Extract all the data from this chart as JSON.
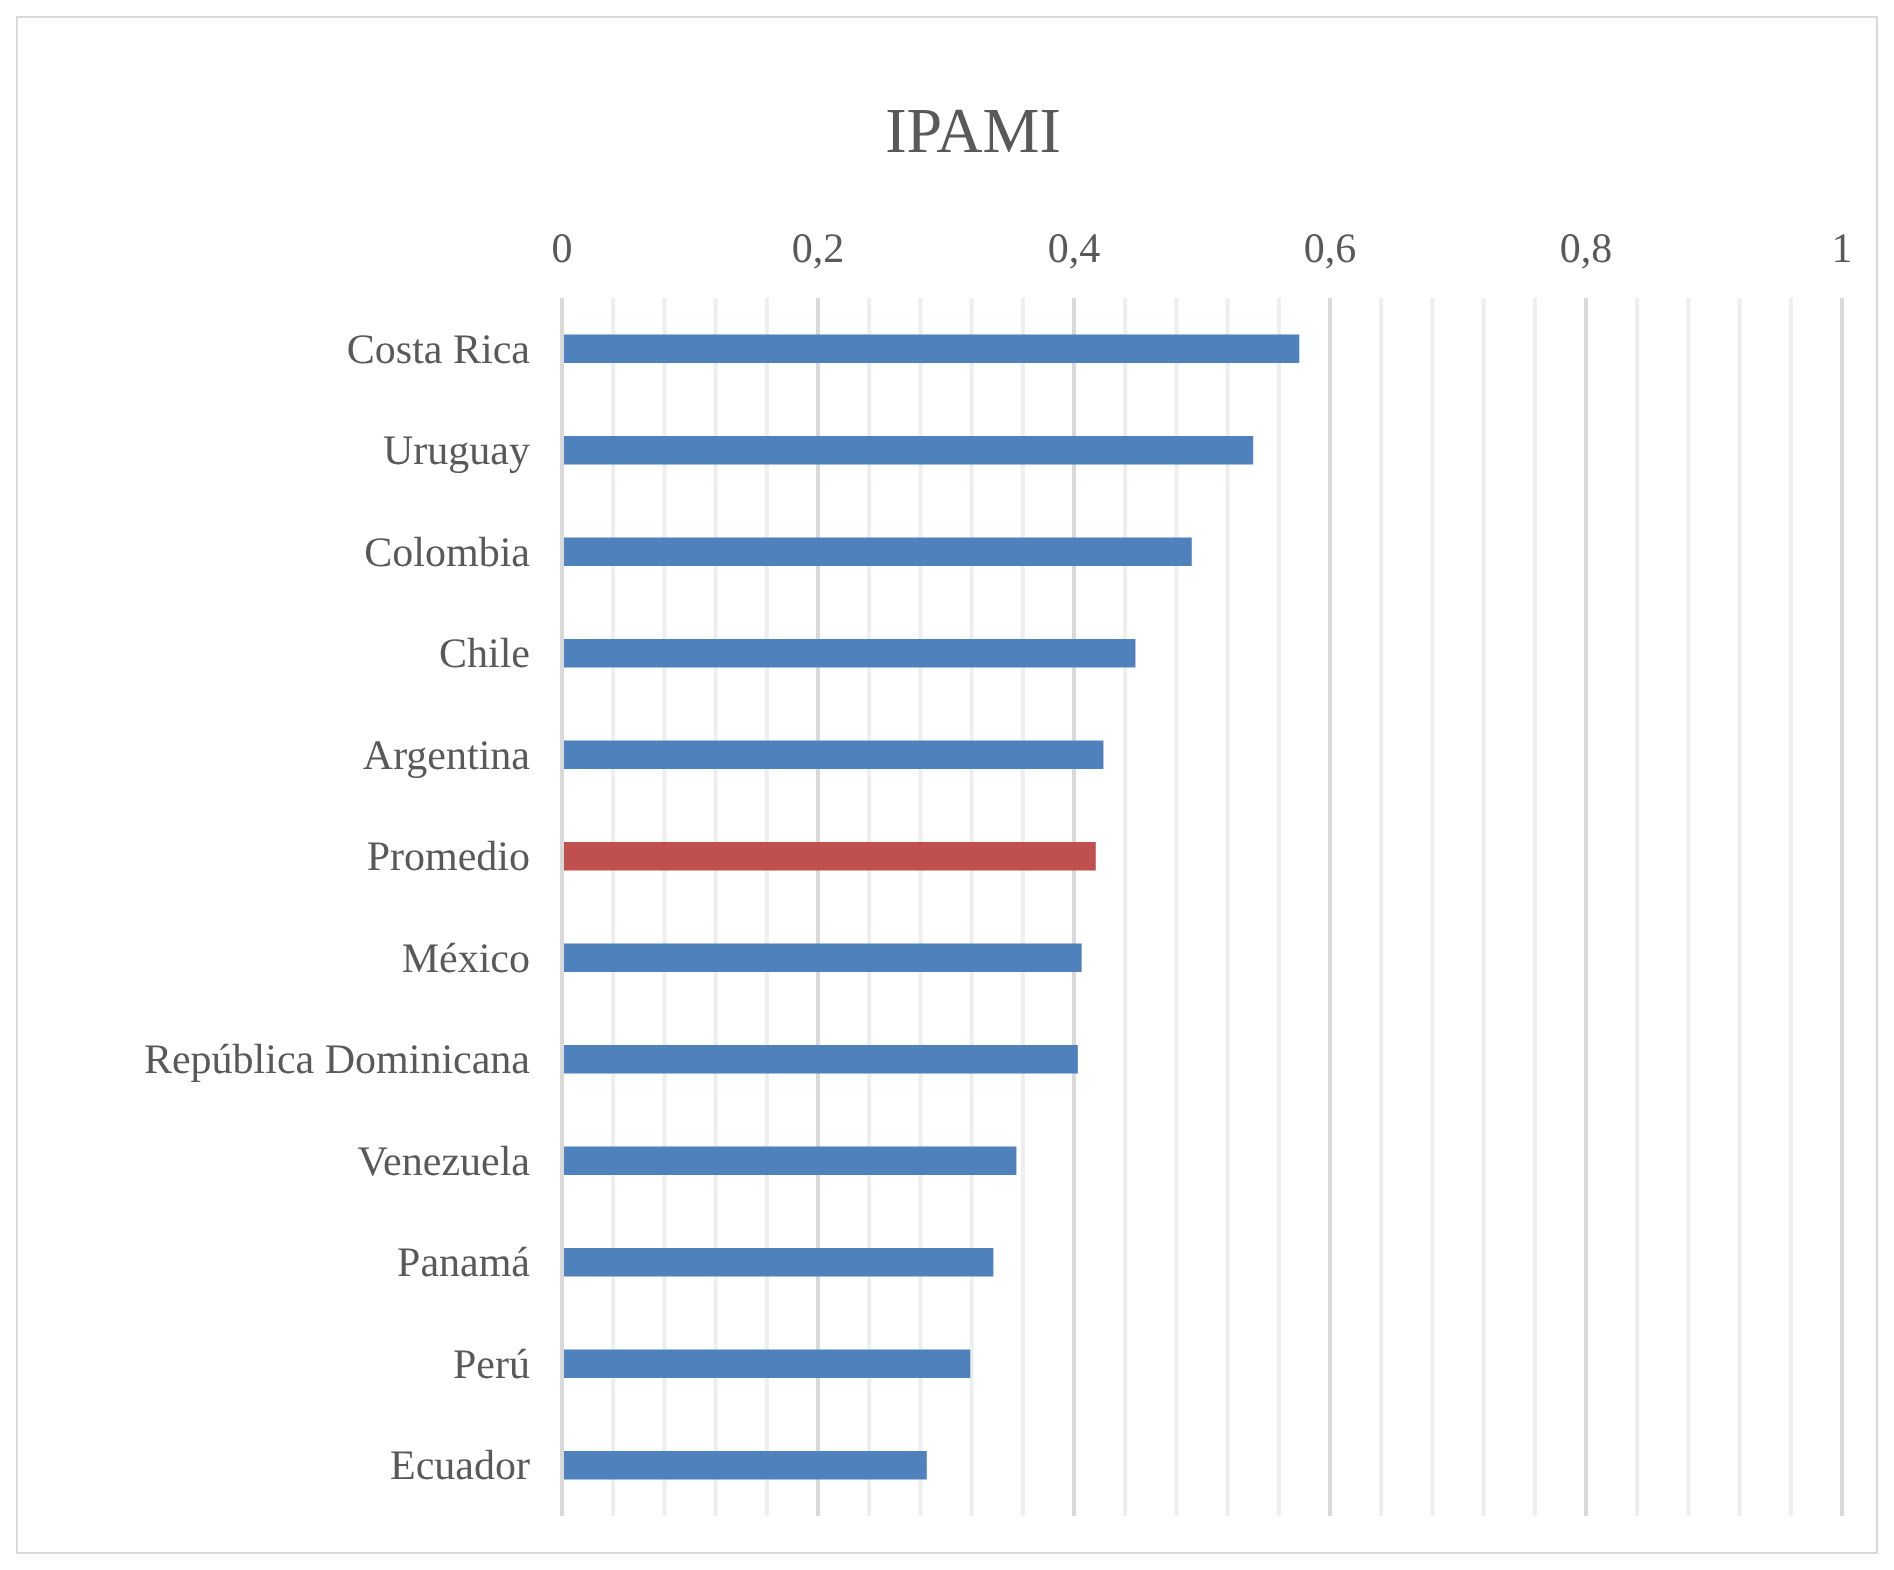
{
  "chart_data": {
    "type": "bar",
    "orientation": "horizontal",
    "title": "IPAMI",
    "categories": [
      "Costa Rica",
      "Uruguay",
      "Colombia",
      "Chile",
      "Argentina",
      "Promedio",
      "México",
      "República Dominicana",
      "Venezuela",
      "Panamá",
      "Perú",
      "Ecuador"
    ],
    "values": [
      0.576,
      0.54,
      0.492,
      0.448,
      0.423,
      0.417,
      0.406,
      0.403,
      0.355,
      0.337,
      0.319,
      0.285
    ],
    "colors": [
      "#4f81bd",
      "#4f81bd",
      "#4f81bd",
      "#4f81bd",
      "#4f81bd",
      "#c0504d",
      "#4f81bd",
      "#4f81bd",
      "#4f81bd",
      "#4f81bd",
      "#4f81bd",
      "#4f81bd"
    ],
    "xlim": [
      0,
      1
    ],
    "xticks": [
      0,
      {
        "value": 0.04,
        "label": null
      },
      {
        "value": 0.08,
        "label": null
      },
      {
        "value": 0.12,
        "label": null
      },
      {
        "value": 0.16,
        "label": null
      },
      {
        "value": 0.2,
        "label": "0,2"
      },
      {
        "value": 0.24,
        "label": null
      },
      {
        "value": 0.28,
        "label": null
      },
      {
        "value": 0.32,
        "label": null
      },
      {
        "value": 0.36,
        "label": null
      },
      {
        "value": 0.4,
        "label": "0,4"
      },
      {
        "value": 0.44,
        "label": null
      },
      {
        "value": 0.48,
        "label": null
      },
      {
        "value": 0.52,
        "label": null
      },
      {
        "value": 0.56,
        "label": null
      },
      {
        "value": 0.6,
        "label": "0,6"
      },
      {
        "value": 0.64,
        "label": null
      },
      {
        "value": 0.68,
        "label": null
      },
      {
        "value": 0.72,
        "label": null
      },
      {
        "value": 0.76,
        "label": null
      },
      {
        "value": 0.8,
        "label": "0,8"
      },
      {
        "value": 0.84,
        "label": null
      },
      {
        "value": 0.88,
        "label": null
      },
      {
        "value": 0.92,
        "label": null
      },
      {
        "value": 0.96,
        "label": null
      },
      1
    ],
    "grid": "x"
  }
}
